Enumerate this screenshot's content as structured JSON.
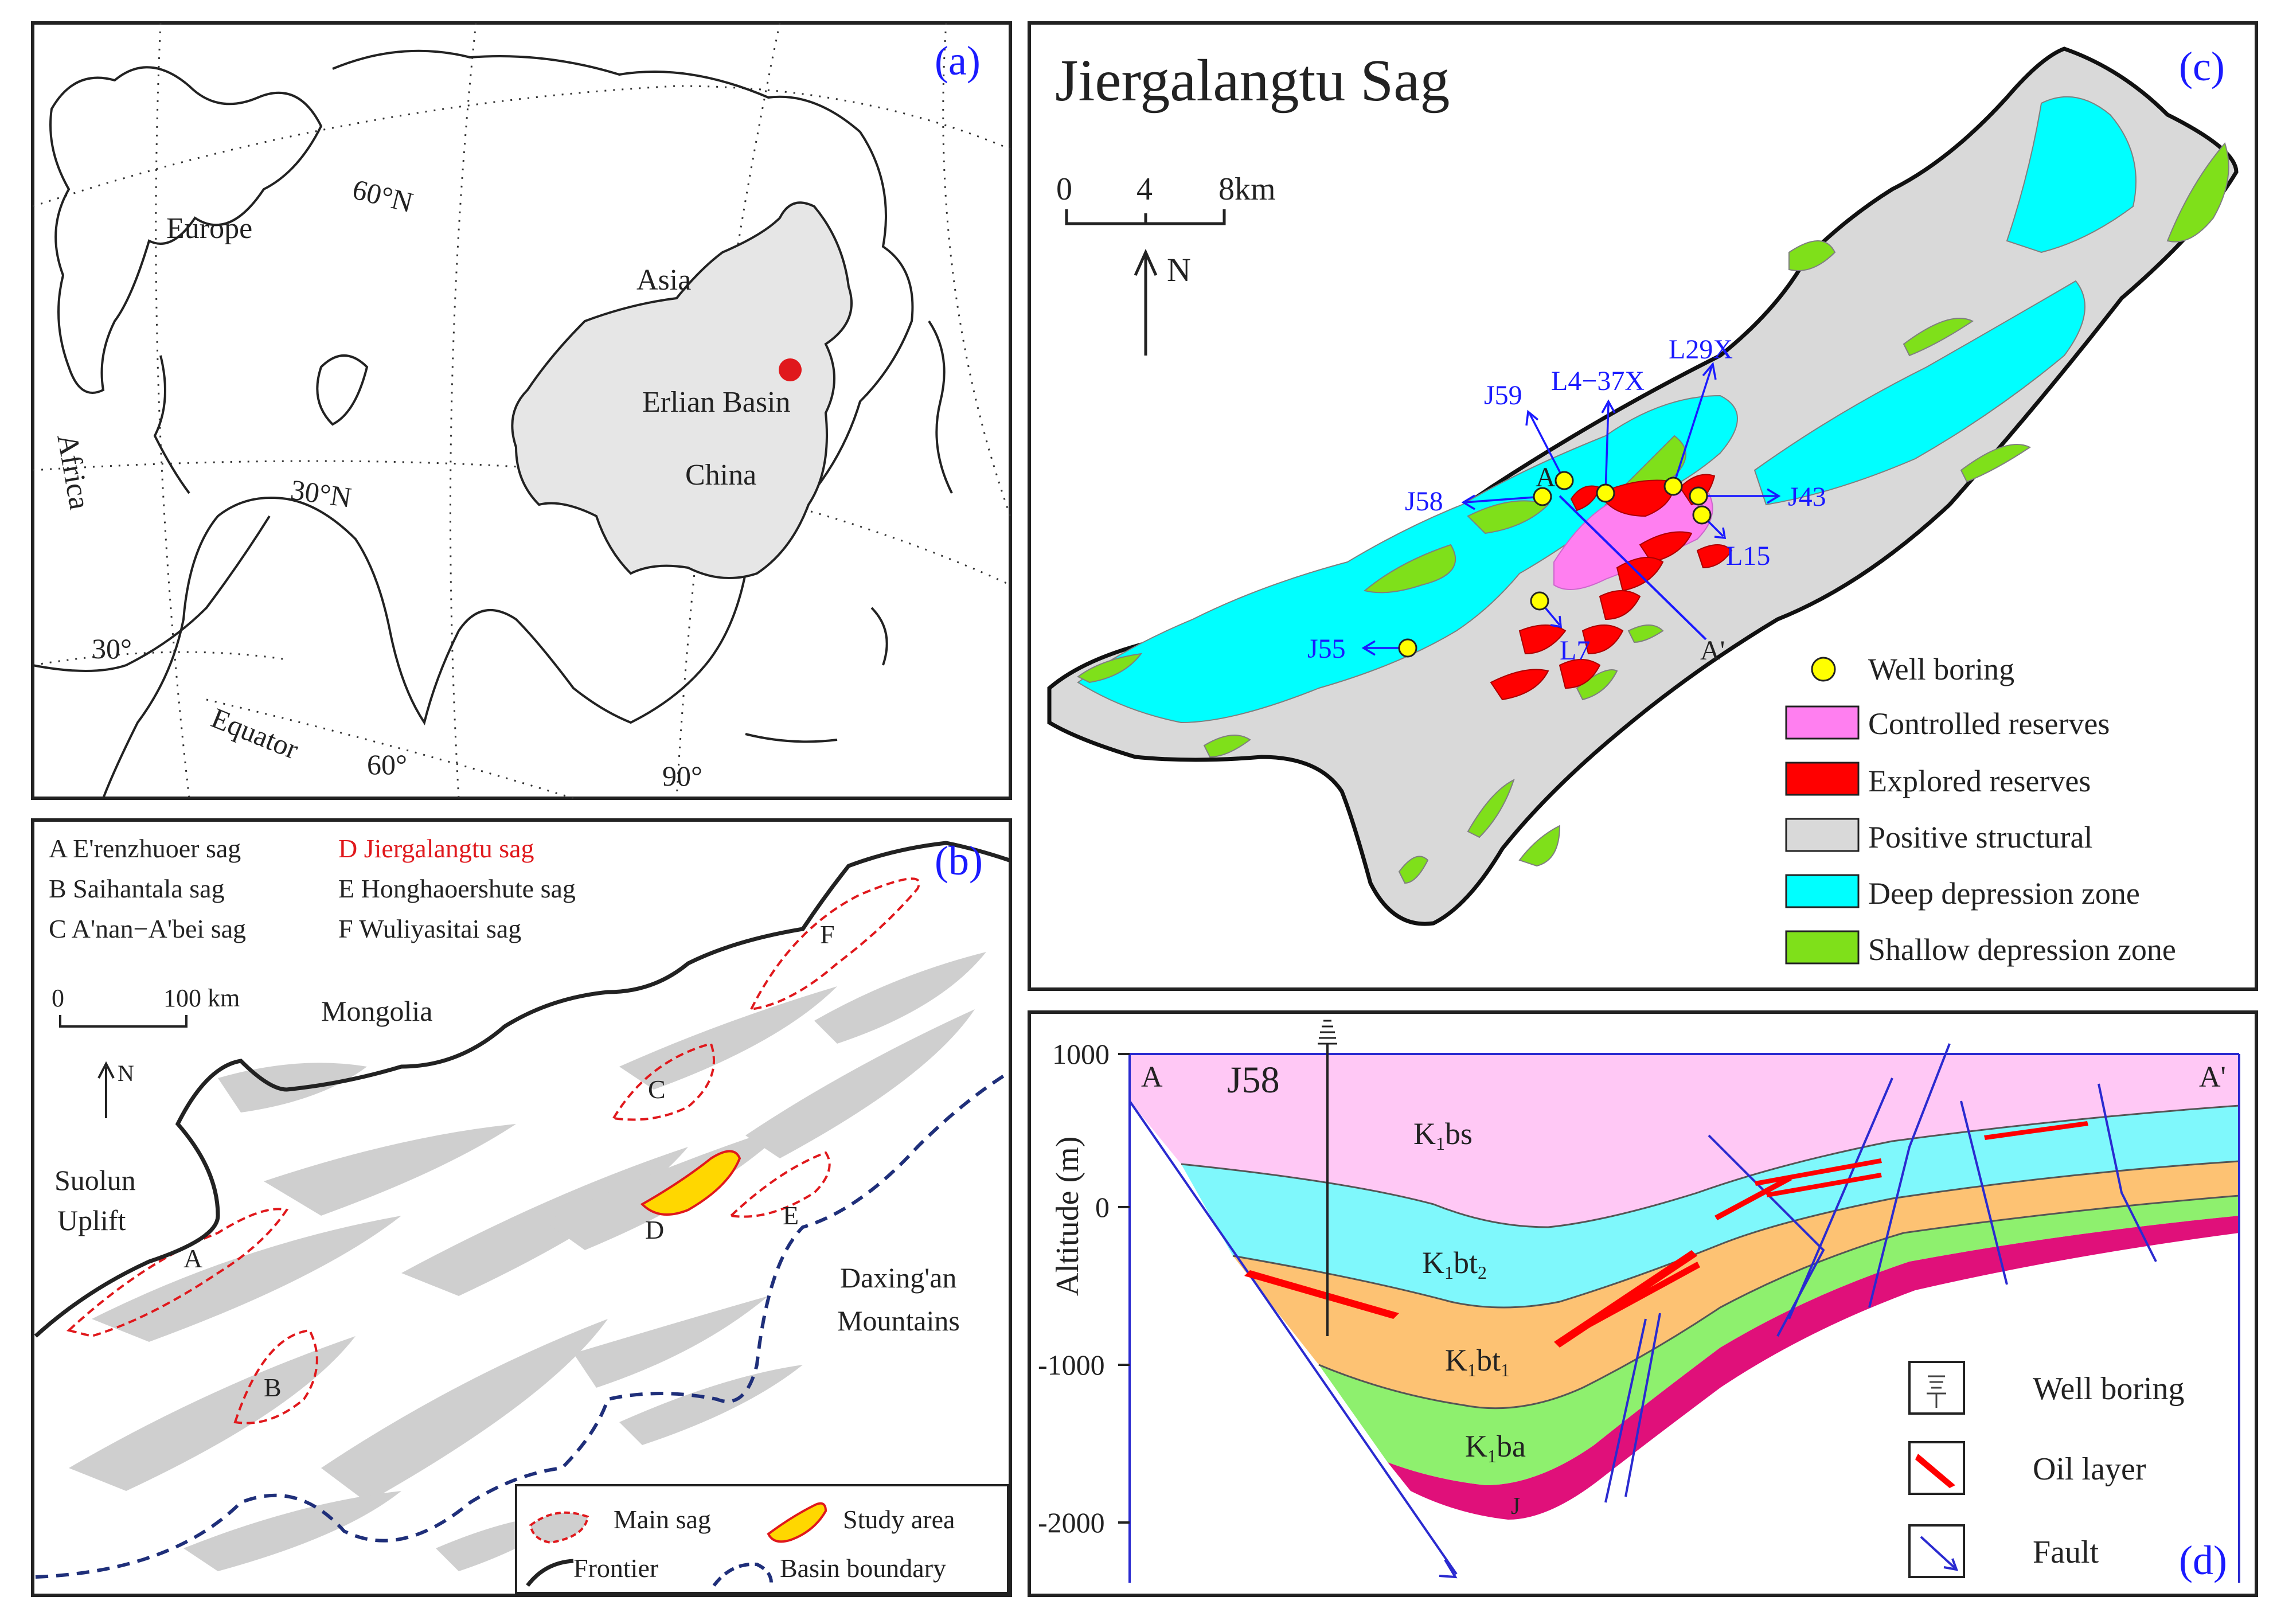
{
  "panels": {
    "a": {
      "label": "(a)",
      "places": {
        "europe": "Europe",
        "asia": "Asia",
        "africa": "Africa",
        "erlian": "Erlian Basin",
        "china": "China"
      },
      "grid_labels": {
        "lat60": "60°N",
        "lat30": "30°N",
        "lon30": "30°",
        "lon60": "60°",
        "lon90": "90°",
        "equator": "Equator"
      }
    },
    "b": {
      "label": "(b)",
      "sag_list": [
        "A E'renzhuoer sag",
        "B Saihantala sag",
        "C A'nan−A'bei sag",
        "D Jiergalangtu sag",
        "E Honghaoershute sag",
        "F Wuliyasitai sag"
      ],
      "scale": {
        "zero": "0",
        "max": "100 km"
      },
      "north": "N",
      "places": {
        "mongolia": "Mongolia",
        "suolun1": "Suolun",
        "suolun2": "Uplift",
        "daxing1": "Daxing'an",
        "daxing2": "Mountains"
      },
      "sag_letters": [
        "A",
        "B",
        "C",
        "D",
        "E",
        "F"
      ],
      "legend": {
        "main_sag": "Main sag",
        "study_area": "Study area",
        "frontier": "Frontier",
        "basin_boundary": "Basin boundary"
      }
    },
    "c": {
      "label": "(c)",
      "title": "Jiergalangtu Sag",
      "scale": {
        "t0": "0",
        "t1": "4",
        "t2": "8km"
      },
      "north": "N",
      "wells": [
        "J59",
        "L4−37X",
        "L29X",
        "J58",
        "J43",
        "L15",
        "L7",
        "J55"
      ],
      "section_ends": {
        "a": "A",
        "a_prime": "A'"
      },
      "legend": [
        {
          "label": "Well boring",
          "color": "#ffff00"
        },
        {
          "label": "Controlled reserves",
          "color": "#ff7ff0"
        },
        {
          "label": "Explored reserves",
          "color": "#ff0000"
        },
        {
          "label": "Positive structural",
          "color": "#d9d9d9"
        },
        {
          "label": "Deep depression zone",
          "color": "#00ffff"
        },
        {
          "label": "Shallow depression zone",
          "color": "#7fe01a"
        }
      ]
    },
    "d": {
      "label": "(d)",
      "well": "J58",
      "ends": {
        "a": "A",
        "a_prime": "A'"
      },
      "y_axis": {
        "label": "Altitude (m)",
        "ticks": [
          "1000",
          "0",
          "-1000",
          "-2000"
        ]
      },
      "units": [
        {
          "base": "K",
          "sub": "1",
          "rest": "bs",
          "color": "#ffc8f5"
        },
        {
          "base": "K",
          "sub": "1",
          "rest": "bt",
          "sub2": "2",
          "color": "#7ff8fc"
        },
        {
          "base": "K",
          "sub": "1",
          "rest": "bt",
          "sub2": "1",
          "color": "#fdc273"
        },
        {
          "base": "K",
          "sub": "1",
          "rest": "ba",
          "color": "#8ef06e"
        }
      ],
      "basement": "J",
      "legend": {
        "well": "Well boring",
        "oil": "Oil layer",
        "fault": "Fault"
      }
    }
  },
  "colors": {
    "label_blue": "#1a1aff",
    "sag_red": "#e0181c",
    "study_yellow": "#ffd700",
    "basement_magenta": "#e0107a"
  }
}
